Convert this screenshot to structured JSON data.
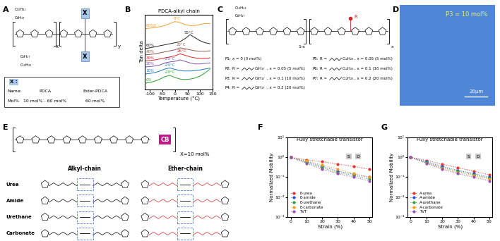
{
  "panel_labels": [
    "A",
    "B",
    "C",
    "D",
    "E",
    "F",
    "G"
  ],
  "panel_A": {
    "side_chains": [
      "C₁₀H₂₁",
      "C₈H₁₇",
      "C₈H₁₇",
      "C₁₀H₂₁"
    ],
    "repeat_units": [
      "x",
      "y"
    ],
    "box": "X",
    "table": {
      "header": "X :",
      "rows": [
        [
          "Name:",
          "PDCA",
          "Ester-PDCA"
        ],
        [
          "Mol%",
          "10 mol% - 60 mol%",
          "60 mol%"
        ]
      ]
    }
  },
  "panel_C": {
    "side_chains": [
      "C₁₀H₂₁",
      "C₈H₁₇"
    ],
    "repeat_units": [
      "1-x",
      "x"
    ],
    "substituent": "R",
    "polymers": [
      {
        "label": "P1:",
        "x": "x = 0 (0 mol%)"
      },
      {
        "label": "P2:",
        "r": "R =",
        "chain": "C₈H₁₇",
        "x": ", x = 0.05 (5 mol%)"
      },
      {
        "label": "P3:",
        "r": "R =",
        "chain": "C₈H₁₇",
        "x": ", x = 0.1 (10 mol%)"
      },
      {
        "label": "P4:",
        "r": "R =",
        "chain": "C₈H₁₇",
        "x": ", x = 0.2 (20 mol%)"
      },
      {
        "label": "P5:",
        "r": "R =",
        "chain": "C₁₂H₂₅",
        "x": ", x = 0.05 (5 mol%)"
      },
      {
        "label": "P6:",
        "r": "R =",
        "chain": "C₁₂H₂₅",
        "x": ", x = 0.1 (10 mol%)"
      },
      {
        "label": "P7:",
        "r": "R =",
        "chain": "C₁₂H₂₅",
        "x": ", x = 0.2 (20 mol%)"
      }
    ]
  },
  "panel_D": {
    "label": "P3 = 10 mol%",
    "scale_bar": "20μm"
  },
  "panel_E": {
    "block": "CB",
    "fraction": "X=10 mol%",
    "columns": [
      "Alkyl-chain",
      "Ether-chain"
    ],
    "rows": [
      "Urea",
      "Amide",
      "Urethane",
      "Carbonate"
    ]
  },
  "chart_data": [
    {
      "type": "line",
      "title": "PDCA-alkyl chain",
      "x_label": "Temperature (°C)",
      "y_label": "Tan delta",
      "x": [
        -120,
        -100,
        -80,
        -60,
        -40,
        -20,
        0,
        20,
        40,
        60,
        80,
        100,
        120,
        140
      ],
      "xlim": [
        -120,
        150
      ],
      "xticks": [
        -100,
        -50,
        0,
        50,
        100,
        150
      ],
      "ylim": [
        0,
        3.7
      ],
      "yticks": [],
      "tick_labels": "x",
      "grid": false,
      "series": [
        {
          "name": "60%E",
          "color": "#f0a030",
          "values": [
            3.0,
            3.02,
            3.05,
            3.1,
            3.15,
            3.25,
            3.35,
            3.3,
            3.2,
            3.15,
            3.15,
            3.2,
            3.25,
            3.25
          ]
        },
        {
          "name": "60%",
          "color": "#222222",
          "values": [
            2.0,
            2.05,
            2.1,
            2.15,
            2.2,
            2.25,
            2.3,
            2.35,
            2.5,
            2.7,
            2.55,
            2.4,
            2.3,
            2.25
          ]
        },
        {
          "name": "40%",
          "color": "#8c564b",
          "values": [
            1.7,
            1.72,
            1.75,
            1.8,
            1.85,
            1.9,
            1.95,
            2.05,
            2.0,
            1.95,
            1.9,
            1.88,
            1.88,
            1.9
          ]
        },
        {
          "name": "30%",
          "color": "#d62728",
          "values": [
            1.4,
            1.42,
            1.45,
            1.5,
            1.55,
            1.6,
            1.65,
            1.75,
            1.68,
            1.6,
            1.55,
            1.52,
            1.52,
            1.55
          ]
        },
        {
          "name": "20%",
          "color": "#7b52ab",
          "values": [
            1.1,
            1.12,
            1.15,
            1.2,
            1.3,
            1.35,
            1.38,
            1.45,
            1.38,
            1.3,
            1.25,
            1.25,
            1.28,
            1.3
          ]
        },
        {
          "name": "10%",
          "color": "#1f77b4",
          "values": [
            0.75,
            0.78,
            0.82,
            0.9,
            1.0,
            1.05,
            0.98,
            0.92,
            0.9,
            0.9,
            0.92,
            0.95,
            1.0,
            1.05
          ]
        },
        {
          "name": "0%",
          "color": "#2ca02c",
          "values": [
            0.3,
            0.33,
            0.4,
            0.5,
            0.62,
            0.68,
            0.58,
            0.5,
            0.48,
            0.5,
            0.55,
            0.65,
            0.8,
            1.0
          ]
        }
      ],
      "annotations": [
        {
          "text": "8°C",
          "x": 8,
          "series": "60%E"
        },
        {
          "text": "55°C",
          "x": 55,
          "series": "60%"
        },
        {
          "text": "25°C",
          "x": 25,
          "series": "40%"
        },
        {
          "text": "26°C",
          "x": 26,
          "series": "30%"
        },
        {
          "text": "-20°C",
          "x": -20,
          "series": "20%"
        },
        {
          "text": "-20°C",
          "x": -20,
          "series": "10%"
        },
        {
          "text": "-20°C",
          "x": -20,
          "series": "0%"
        }
      ]
    },
    {
      "type": "line",
      "title": "Fully stretchable transistor",
      "x_label": "Strain (%)",
      "y_label": "Normalized Mobility",
      "x": [
        0,
        10,
        20,
        30,
        40,
        50
      ],
      "xlim": [
        -2,
        52
      ],
      "xticks": [
        0,
        10,
        20,
        30,
        40,
        50
      ],
      "log": "y",
      "ylim": [
        0.001,
        10
      ],
      "yticks": [
        {
          "value": 0.001,
          "label": "10⁻³"
        },
        {
          "value": 0.01,
          "label": "10⁻²"
        },
        {
          "value": 0.1,
          "label": "10⁻¹"
        },
        {
          "value": 1,
          "label": "10⁰"
        },
        {
          "value": 10,
          "label": "10¹"
        }
      ],
      "grid": false,
      "legend": "lower left",
      "marker": "circle",
      "line_style": "dotted",
      "inset_texts": [
        "S",
        "D"
      ],
      "series": [
        {
          "name": "E-urea",
          "color": "#e8312a",
          "values": [
            1,
            0.75,
            0.6,
            0.45,
            0.35,
            0.25
          ]
        },
        {
          "name": "E-amide",
          "color": "#2a4ed8",
          "values": [
            1,
            0.6,
            0.35,
            0.2,
            0.14,
            0.1
          ]
        },
        {
          "name": "E-urethane",
          "color": "#2e9e3e",
          "values": [
            1,
            0.55,
            0.3,
            0.17,
            0.12,
            0.08
          ]
        },
        {
          "name": "E-carbonate",
          "color": "#f29a1f",
          "values": [
            1,
            0.7,
            0.4,
            0.25,
            0.15,
            0.1
          ]
        },
        {
          "name": "TVT",
          "color": "#9b4fb0",
          "values": [
            1,
            0.5,
            0.25,
            0.15,
            0.1,
            0.065
          ]
        }
      ]
    },
    {
      "type": "line",
      "title": "Fully stretchable transistor",
      "x_label": "Strain (%)",
      "y_label": "Normalized Mobility",
      "x": [
        0,
        10,
        20,
        30,
        40,
        50
      ],
      "xlim": [
        -2,
        52
      ],
      "xticks": [
        0,
        10,
        20,
        30,
        40,
        50
      ],
      "log": "y",
      "ylim": [
        0.001,
        10
      ],
      "yticks": [
        {
          "value": 0.001,
          "label": "10⁻³"
        },
        {
          "value": 0.01,
          "label": "10⁻²"
        },
        {
          "value": 0.1,
          "label": "10⁻¹"
        },
        {
          "value": 1,
          "label": "10⁰"
        },
        {
          "value": 10,
          "label": "10¹"
        }
      ],
      "grid": false,
      "legend": "lower left",
      "marker": "circle",
      "line_style": "dotted",
      "inset_texts": [
        "S",
        "D"
      ],
      "series": [
        {
          "name": "A-urea",
          "color": "#e8312a",
          "values": [
            1,
            0.7,
            0.45,
            0.3,
            0.2,
            0.13
          ]
        },
        {
          "name": "A-amide",
          "color": "#2a4ed8",
          "values": [
            1,
            0.6,
            0.35,
            0.22,
            0.15,
            0.1
          ]
        },
        {
          "name": "A-urethane",
          "color": "#2e9e3e",
          "values": [
            1,
            0.55,
            0.3,
            0.2,
            0.13,
            0.09
          ]
        },
        {
          "name": "A-carbonate",
          "color": "#f29a1f",
          "values": [
            1,
            0.5,
            0.28,
            0.17,
            0.12,
            0.08
          ]
        },
        {
          "name": "TVT",
          "color": "#9b4fb0",
          "values": [
            1,
            0.5,
            0.25,
            0.15,
            0.1,
            0.065
          ]
        }
      ]
    }
  ]
}
